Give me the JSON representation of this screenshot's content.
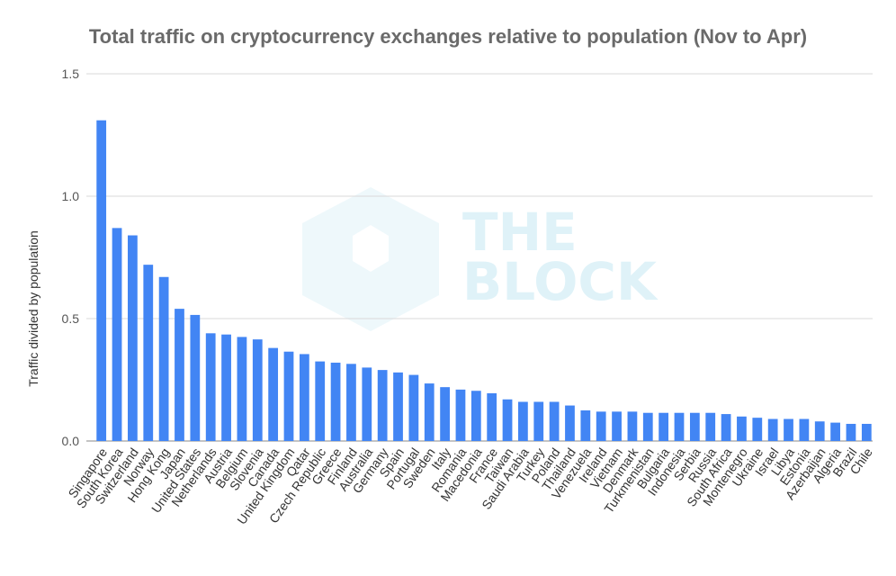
{
  "chart_data": {
    "type": "bar",
    "title": "Total traffic on cryptocurrency exchanges relative to population (Nov to Apr)",
    "xlabel": "",
    "ylabel": "Traffic divided by population",
    "ylim": [
      0,
      1.5
    ],
    "yticks": [
      "0.0",
      "0.5",
      "1.0",
      "1.5"
    ],
    "grid": true,
    "bar_color": "#4285f4",
    "categories": [
      "Singapore",
      "South Korea",
      "Switzerland",
      "Norway",
      "Hong Kong",
      "Japan",
      "United States",
      "Netherlands",
      "Austria",
      "Belgium",
      "Slovenia",
      "Canada",
      "United Kingdom",
      "Qatar",
      "Czech Republic",
      "Greece",
      "Finland",
      "Australia",
      "Germany",
      "Spain",
      "Portugal",
      "Sweden",
      "Italy",
      "Romania",
      "Macedonia",
      "France",
      "Taiwan",
      "Saudi Arabia",
      "Turkey",
      "Poland",
      "Thailand",
      "Venezuela",
      "Ireland",
      "Vietnam",
      "Denmark",
      "Turkmenistan",
      "Bulgaria",
      "Indonesia",
      "Serbia",
      "Russia",
      "South Africa",
      "Montenegro",
      "Ukraine",
      "Israel",
      "Libya",
      "Estonia",
      "Azerbaijan",
      "Algeria",
      "Brazil",
      "Chile"
    ],
    "values": [
      1.31,
      0.87,
      0.84,
      0.72,
      0.67,
      0.54,
      0.515,
      0.44,
      0.435,
      0.425,
      0.415,
      0.38,
      0.365,
      0.355,
      0.325,
      0.32,
      0.315,
      0.3,
      0.29,
      0.28,
      0.27,
      0.235,
      0.22,
      0.21,
      0.205,
      0.195,
      0.17,
      0.16,
      0.16,
      0.16,
      0.145,
      0.125,
      0.12,
      0.12,
      0.12,
      0.115,
      0.115,
      0.115,
      0.115,
      0.115,
      0.11,
      0.1,
      0.095,
      0.09,
      0.09,
      0.09,
      0.08,
      0.075,
      0.07,
      0.07
    ]
  },
  "watermark": {
    "line1": "THE",
    "line2": "BLOCK"
  }
}
